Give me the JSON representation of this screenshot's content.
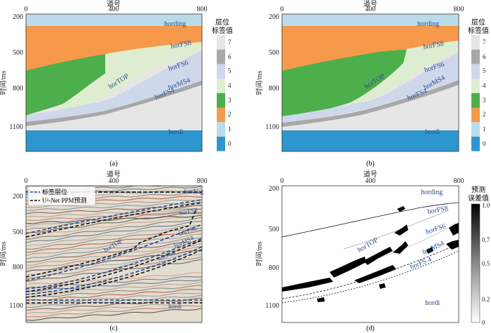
{
  "panels": [
    {
      "id": "a",
      "caption": "(a)",
      "type": "layer-label-map",
      "xlabel": "道号",
      "ylabel": "时间/ms",
      "xticks": [
        "0",
        "400",
        "800"
      ],
      "yticks": [
        "200",
        "500",
        "800",
        "1100"
      ],
      "horizon_labels": [
        "hording",
        "horFS8",
        "horFS6",
        "horTOP",
        "horMS4",
        "horFS4",
        "hordi"
      ],
      "colorbar": {
        "title": [
          "层位",
          "标签值"
        ],
        "ticks": [
          "7",
          "6",
          "5",
          "4",
          "3",
          "2",
          "1",
          "0"
        ]
      }
    },
    {
      "id": "b",
      "caption": "(b)",
      "type": "layer-label-map",
      "xlabel": "道号",
      "ylabel": "时间/ms",
      "xticks": [
        "0",
        "400",
        "800"
      ],
      "yticks": [
        "200",
        "500",
        "800",
        "1100"
      ],
      "horizon_labels": [
        "hording",
        "horFS8",
        "horFS6",
        "horTOP",
        "horMS4",
        "horFS4",
        "hordi"
      ],
      "colorbar": {
        "title": [
          "层位",
          "标签值"
        ],
        "ticks": [
          "7",
          "6",
          "5",
          "4",
          "3",
          "2",
          "1",
          "0"
        ]
      }
    },
    {
      "id": "c",
      "caption": "(c)",
      "type": "seismic-section-with-horizons",
      "xlabel": "道号",
      "ylabel": "时间/ms",
      "xticks": [
        "0",
        "400",
        "800"
      ],
      "yticks": [
        "200",
        "500",
        "800",
        "1100"
      ],
      "legend": [
        "标签层位",
        "U²-Net PPM预测"
      ],
      "horizon_labels": [
        "hording",
        "horFS8",
        "horFS6",
        "horTOP",
        "horMS4",
        "horFS4",
        "hordi"
      ]
    },
    {
      "id": "d",
      "caption": "(d)",
      "type": "prediction-error-map",
      "xlabel": "道号",
      "ylabel": "时间/ms",
      "xticks": [
        "0",
        "400",
        "800"
      ],
      "yticks": [
        "200",
        "500",
        "800",
        "1100"
      ],
      "horizon_labels": [
        "hording",
        "horFS8",
        "horFS6",
        "horTOP",
        "horMS4",
        "horFS 4",
        "hordi"
      ],
      "colorbar": {
        "title": [
          "预测",
          "误差值"
        ],
        "ticks": [
          "1.0",
          "0.7",
          "0.5",
          "0.2",
          "0"
        ]
      }
    }
  ],
  "chart_data": {
    "type": "heatmap",
    "x_axis": {
      "label": "道号",
      "range": [
        0,
        800
      ],
      "ticks": [
        0,
        400,
        800
      ]
    },
    "y_axis": {
      "label": "时间/ms",
      "range": [
        200,
        1250
      ],
      "ticks": [
        200,
        500,
        800,
        1100
      ],
      "inverted": true
    },
    "layer_label_colors": {
      "0": "#2e96cf",
      "1": "#b9dbea",
      "2": "#f6994b",
      "3": "#4caf4c",
      "4": "#deedcf",
      "5": "#cfd7ea",
      "6": "#a8a8a8",
      "7": "#e6e6e6"
    },
    "horizons": [
      {
        "name": "hording",
        "x": [
          0,
          800
        ],
        "t": [
          256,
          256
        ]
      },
      {
        "name": "horFS8",
        "x": [
          0,
          400,
          800
        ],
        "t": [
          632,
          448,
          280
        ]
      },
      {
        "name": "horFS6",
        "x": [
          0,
          400,
          800
        ],
        "t": [
          968,
          832,
          595
        ]
      },
      {
        "name": "horFS4",
        "x": [
          0,
          400,
          800
        ],
        "t": [
          1040,
          920,
          720
        ]
      },
      {
        "name": "hordi",
        "x": [
          0,
          800
        ],
        "t": [
          1120,
          1120
        ]
      }
    ],
    "error_colorbar": {
      "min": 0,
      "max": 1.0,
      "ticks": [
        0.2,
        0.5,
        0.7,
        1.0
      ]
    }
  }
}
